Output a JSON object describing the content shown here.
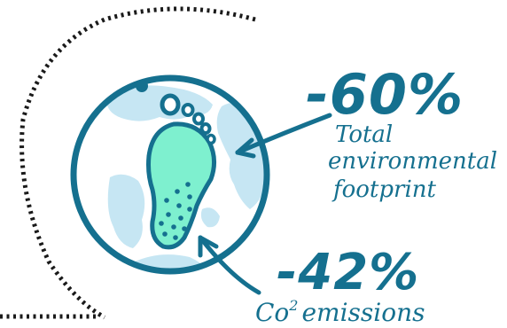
{
  "colors": {
    "primary": "#15708f",
    "dots": "#1a1a1a",
    "land": "#c6e6f3",
    "foot_fill": "#7ef0cf",
    "background": "#ffffff"
  },
  "icons": {
    "globe": "globe-icon",
    "footprint": "footprint-icon"
  },
  "stats": {
    "footprint": {
      "value": "-60%",
      "label_line1": "Total",
      "label_line2": "environmental",
      "label_line3": "footprint"
    },
    "emissions": {
      "value": "-42%",
      "label_co": "Co",
      "label_sup": "2",
      "label_rest": "emissions"
    }
  }
}
